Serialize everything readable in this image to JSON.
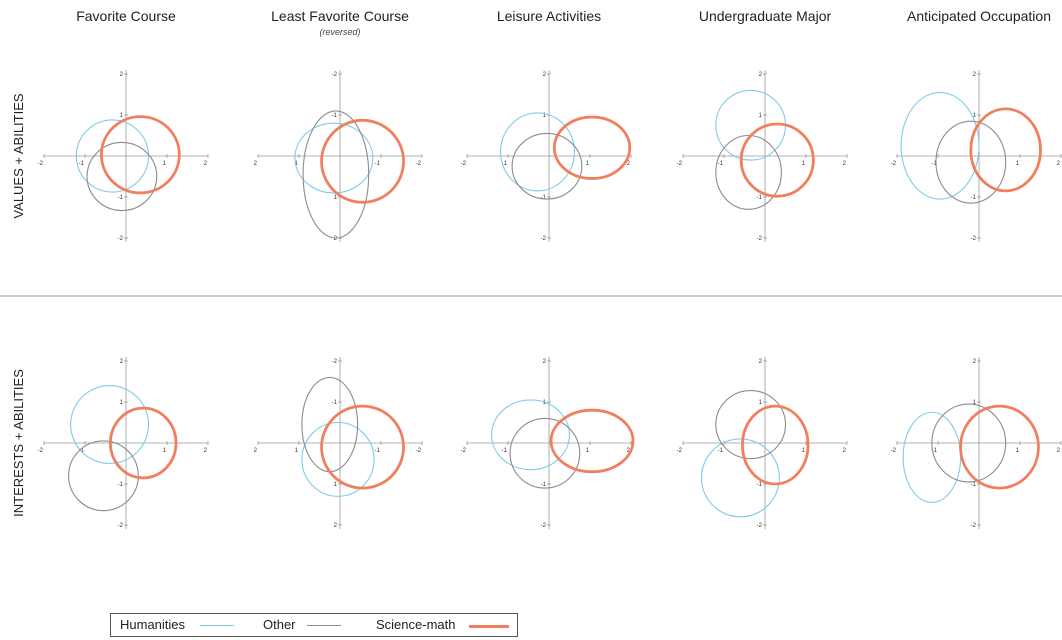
{
  "colors": {
    "humanities": "#7fcbe9",
    "other": "#8c8c8c",
    "science_math": "#f07f5e"
  },
  "legend": [
    {
      "key": "humanities",
      "label": "Humanities"
    },
    {
      "key": "other",
      "label": "Other"
    },
    {
      "key": "science_math",
      "label": "Science-math"
    }
  ],
  "chart_data": {
    "type": "scatter",
    "description_kind": "confidence-ellipse small multiples",
    "columns": [
      {
        "title": "Favorite Course",
        "subtitle": ""
      },
      {
        "title": "Least Favorite Course",
        "subtitle": "(reversed)"
      },
      {
        "title": "Leisure Activities",
        "subtitle": ""
      },
      {
        "title": "Undergraduate Major",
        "subtitle": ""
      },
      {
        "title": "Anticipated Occupation",
        "subtitle": ""
      }
    ],
    "rows": [
      {
        "label": "VALUES + ABILITIES"
      },
      {
        "label": "INTERESTS + ABILITIES"
      }
    ],
    "axes": {
      "x_range": [
        -2,
        2
      ],
      "y_range": [
        -2,
        2
      ],
      "ticks_normal": {
        "x": [
          "-2",
          "-1",
          "1",
          "2"
        ],
        "y": [
          "2",
          "1",
          "-1",
          "-2"
        ]
      },
      "ticks_reversed": {
        "x": [
          "2",
          "1",
          "-1",
          "-2"
        ],
        "y": [
          "-2",
          "-1",
          "1",
          "2"
        ]
      }
    },
    "panels": [
      {
        "row": 0,
        "col": 0,
        "ellipses": [
          {
            "group": "humanities",
            "cx": -0.33,
            "cy": 0.0,
            "rx": 0.88,
            "ry": 0.88
          },
          {
            "group": "other",
            "cx": -0.1,
            "cy": -0.5,
            "rx": 0.85,
            "ry": 0.83
          },
          {
            "group": "science_math",
            "cx": 0.35,
            "cy": 0.03,
            "rx": 0.95,
            "ry": 0.93
          }
        ]
      },
      {
        "row": 1,
        "col": 0,
        "ellipses": [
          {
            "group": "humanities",
            "cx": -0.4,
            "cy": 0.45,
            "rx": 0.95,
            "ry": 0.95
          },
          {
            "group": "other",
            "cx": -0.55,
            "cy": -0.8,
            "rx": 0.85,
            "ry": 0.85
          },
          {
            "group": "science_math",
            "cx": 0.42,
            "cy": 0.0,
            "rx": 0.8,
            "ry": 0.85
          }
        ]
      },
      {
        "row": 0,
        "col": 1,
        "ellipses": [
          {
            "group": "humanities",
            "cx": 0.15,
            "cy": 0.05,
            "rx": 0.95,
            "ry": 0.85
          },
          {
            "group": "other",
            "cx": 0.1,
            "cy": 0.45,
            "rx": 0.8,
            "ry": 1.55
          },
          {
            "group": "science_math",
            "cx": -0.55,
            "cy": 0.13,
            "rx": 1.0,
            "ry": 1.0
          }
        ]
      },
      {
        "row": 1,
        "col": 1,
        "ellipses": [
          {
            "group": "humanities",
            "cx": 0.05,
            "cy": 0.4,
            "rx": 0.88,
            "ry": 0.9
          },
          {
            "group": "other",
            "cx": 0.25,
            "cy": -0.45,
            "rx": 0.68,
            "ry": 1.15
          },
          {
            "group": "science_math",
            "cx": -0.55,
            "cy": 0.1,
            "rx": 1.0,
            "ry": 1.0
          }
        ]
      },
      {
        "row": 0,
        "col": 2,
        "ellipses": [
          {
            "group": "humanities",
            "cx": -0.28,
            "cy": 0.1,
            "rx": 0.9,
            "ry": 0.95
          },
          {
            "group": "other",
            "cx": -0.05,
            "cy": -0.25,
            "rx": 0.85,
            "ry": 0.8
          },
          {
            "group": "science_math",
            "cx": 1.05,
            "cy": 0.2,
            "rx": 0.92,
            "ry": 0.75
          }
        ]
      },
      {
        "row": 1,
        "col": 2,
        "ellipses": [
          {
            "group": "humanities",
            "cx": -0.45,
            "cy": 0.2,
            "rx": 0.95,
            "ry": 0.85
          },
          {
            "group": "other",
            "cx": -0.1,
            "cy": -0.25,
            "rx": 0.85,
            "ry": 0.85
          },
          {
            "group": "science_math",
            "cx": 1.05,
            "cy": 0.05,
            "rx": 1.0,
            "ry": 0.75
          }
        ]
      },
      {
        "row": 0,
        "col": 3,
        "ellipses": [
          {
            "group": "humanities",
            "cx": -0.35,
            "cy": 0.75,
            "rx": 0.85,
            "ry": 0.85
          },
          {
            "group": "other",
            "cx": -0.4,
            "cy": -0.4,
            "rx": 0.8,
            "ry": 0.9
          },
          {
            "group": "science_math",
            "cx": 0.3,
            "cy": -0.1,
            "rx": 0.88,
            "ry": 0.88
          }
        ]
      },
      {
        "row": 1,
        "col": 3,
        "ellipses": [
          {
            "group": "humanities",
            "cx": -0.6,
            "cy": -0.85,
            "rx": 0.95,
            "ry": 0.95
          },
          {
            "group": "other",
            "cx": -0.35,
            "cy": 0.45,
            "rx": 0.85,
            "ry": 0.83
          },
          {
            "group": "science_math",
            "cx": 0.25,
            "cy": -0.05,
            "rx": 0.8,
            "ry": 0.95
          }
        ]
      },
      {
        "row": 0,
        "col": 4,
        "ellipses": [
          {
            "group": "humanities",
            "cx": -0.95,
            "cy": 0.25,
            "rx": 0.95,
            "ry": 1.3
          },
          {
            "group": "other",
            "cx": -0.2,
            "cy": -0.15,
            "rx": 0.85,
            "ry": 1.0
          },
          {
            "group": "science_math",
            "cx": 0.65,
            "cy": 0.15,
            "rx": 0.85,
            "ry": 1.0
          }
        ]
      },
      {
        "row": 1,
        "col": 4,
        "ellipses": [
          {
            "group": "humanities",
            "cx": -1.15,
            "cy": -0.35,
            "rx": 0.7,
            "ry": 1.1
          },
          {
            "group": "other",
            "cx": -0.25,
            "cy": 0.0,
            "rx": 0.9,
            "ry": 0.95
          },
          {
            "group": "science_math",
            "cx": 0.5,
            "cy": -0.1,
            "rx": 0.95,
            "ry": 1.0
          }
        ]
      }
    ]
  }
}
